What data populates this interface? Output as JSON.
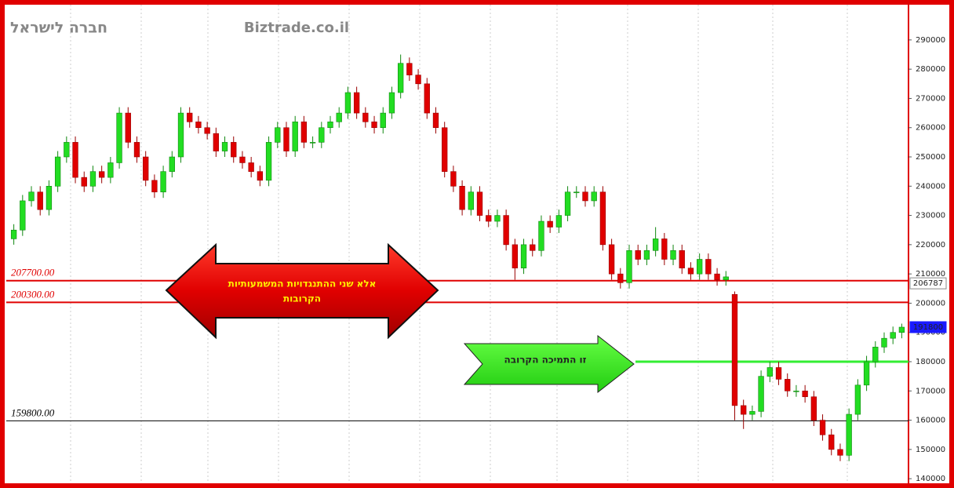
{
  "header": {
    "company": "חברה לישראל",
    "site": "Biztrade.co.il"
  },
  "annotations": {
    "resistance": [
      "אלא שני ההתנגדויות  המשמעותיות",
      "הקרובות"
    ],
    "support": "זו התמיכה הקרובה"
  },
  "chart_data": {
    "type": "candlestick",
    "open": [
      222000,
      225000,
      235000,
      238000,
      232000,
      240000,
      250000,
      255000,
      243000,
      240000,
      245000,
      243000,
      248000,
      265000,
      255000,
      250000,
      242000,
      238000,
      245000,
      250000,
      265000,
      262000,
      260000,
      258000,
      252000,
      255000,
      250000,
      248000,
      245000,
      242000,
      255000,
      260000,
      252000,
      262000,
      255000,
      255000,
      260000,
      262000,
      265000,
      272000,
      265000,
      262000,
      260000,
      265000,
      272000,
      282000,
      278000,
      275000,
      265000,
      260000,
      245000,
      240000,
      232000,
      238000,
      230000,
      228000,
      230000,
      220000,
      212000,
      220000,
      218000,
      228000,
      226000,
      230000,
      238000,
      238000,
      235000,
      238000,
      220000,
      210000,
      207000,
      218000,
      215000,
      218000,
      222000,
      215000,
      218000,
      212000,
      210000,
      215000,
      210000,
      208000,
      203000,
      165000,
      162000,
      163000,
      175000,
      178000,
      174000,
      170000,
      170000,
      168000,
      160000,
      155000,
      150000,
      148000,
      162000,
      172000,
      180000,
      185000,
      188000,
      190000
    ],
    "high": [
      227000,
      237000,
      240000,
      240000,
      242000,
      252000,
      257000,
      257000,
      245000,
      247000,
      247000,
      250000,
      267000,
      267000,
      257000,
      252000,
      244000,
      247000,
      252000,
      267000,
      267000,
      264000,
      262000,
      260000,
      257000,
      257000,
      252000,
      250000,
      247000,
      257000,
      262000,
      262000,
      264000,
      264000,
      257000,
      262000,
      264000,
      267000,
      274000,
      274000,
      267000,
      264000,
      267000,
      274000,
      285000,
      284000,
      280000,
      277000,
      267000,
      262000,
      247000,
      242000,
      240000,
      240000,
      232000,
      232000,
      232000,
      222000,
      222000,
      222000,
      230000,
      230000,
      232000,
      240000,
      240000,
      240000,
      240000,
      240000,
      222000,
      212000,
      220000,
      220000,
      220000,
      226000,
      224000,
      220000,
      220000,
      214000,
      217000,
      217000,
      212000,
      211000,
      204000,
      167000,
      165000,
      177000,
      180000,
      180000,
      176000,
      172000,
      172000,
      170000,
      162000,
      157000,
      152000,
      164000,
      174000,
      182000,
      187000,
      190000,
      192000,
      193000
    ],
    "low": [
      220000,
      223000,
      233000,
      230000,
      230000,
      238000,
      248000,
      241000,
      238000,
      238000,
      241000,
      241000,
      246000,
      253000,
      248000,
      240000,
      236000,
      236000,
      243000,
      248000,
      260000,
      258000,
      256000,
      250000,
      250000,
      248000,
      246000,
      243000,
      240000,
      240000,
      253000,
      250000,
      250000,
      253000,
      253000,
      253000,
      258000,
      260000,
      263000,
      263000,
      260000,
      258000,
      258000,
      263000,
      270000,
      276000,
      273000,
      263000,
      258000,
      243000,
      238000,
      230000,
      230000,
      228000,
      226000,
      226000,
      218000,
      208000,
      210000,
      216000,
      216000,
      224000,
      224000,
      228000,
      236000,
      233000,
      233000,
      218000,
      208000,
      205000,
      205000,
      213000,
      213000,
      216000,
      213000,
      213000,
      210000,
      208000,
      208000,
      208000,
      206000,
      206000,
      160000,
      157000,
      160000,
      161000,
      173000,
      172000,
      168000,
      168000,
      166000,
      158000,
      153000,
      148000,
      146000,
      146000,
      160000,
      170000,
      178000,
      183000,
      186000,
      188000
    ],
    "close": [
      225000,
      235000,
      238000,
      232000,
      240000,
      250000,
      255000,
      243000,
      240000,
      245000,
      243000,
      248000,
      265000,
      255000,
      250000,
      242000,
      238000,
      245000,
      250000,
      265000,
      262000,
      260000,
      258000,
      252000,
      255000,
      250000,
      248000,
      245000,
      242000,
      255000,
      260000,
      252000,
      262000,
      255000,
      255000,
      260000,
      262000,
      265000,
      272000,
      265000,
      262000,
      260000,
      265000,
      272000,
      282000,
      278000,
      275000,
      265000,
      260000,
      245000,
      240000,
      232000,
      238000,
      230000,
      228000,
      230000,
      220000,
      212000,
      220000,
      218000,
      228000,
      226000,
      230000,
      238000,
      238000,
      235000,
      238000,
      220000,
      210000,
      207000,
      218000,
      215000,
      218000,
      222000,
      215000,
      218000,
      212000,
      210000,
      215000,
      210000,
      208000,
      209000,
      165000,
      162000,
      163000,
      175000,
      178000,
      174000,
      170000,
      170000,
      168000,
      160000,
      155000,
      150000,
      148000,
      162000,
      172000,
      180000,
      185000,
      188000,
      190000,
      191800
    ],
    "up_color": "#22dd22",
    "down_color": "#e00000",
    "ylim": [
      139500,
      301500
    ],
    "yticks": [
      140000,
      150000,
      160000,
      170000,
      180000,
      190000,
      200000,
      210000,
      220000,
      230000,
      240000,
      250000,
      260000,
      270000,
      280000,
      290000
    ],
    "levels": [
      {
        "value": 207700,
        "label": "207700.00",
        "color": "#e00000"
      },
      {
        "value": 200300,
        "label": "200300.00",
        "color": "#e00000"
      },
      {
        "value": 159800,
        "label": "159800.00",
        "color": "#000000"
      },
      {
        "value": 180000,
        "color": "#33ee33"
      }
    ],
    "price_markers": [
      206787,
      191800
    ]
  }
}
